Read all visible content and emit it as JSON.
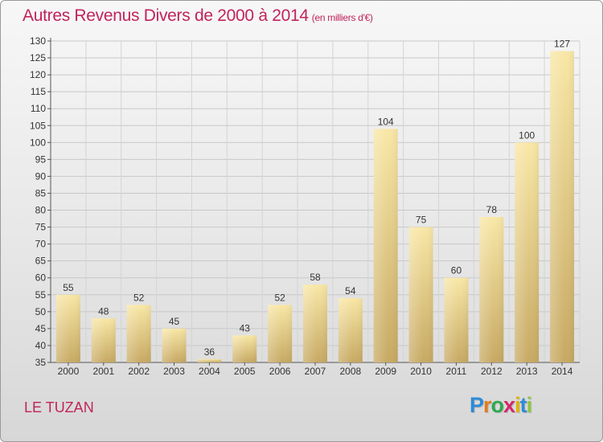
{
  "title": "Autres Revenus Divers de 2000 à 2014",
  "unit_note": "(en milliers d'€)",
  "location": "LE TUZAN",
  "logo": {
    "text": "Proxiti",
    "letters": [
      "P",
      "r",
      "o",
      "x",
      "i",
      "t",
      "i"
    ],
    "colors": [
      "#2e8bd6",
      "#e07c1a",
      "#2fa84f",
      "#d4286a",
      "#e0b400",
      "#2e8bd6",
      "#8cc63f"
    ]
  },
  "colors": {
    "accent": "#c0245c",
    "bar_light": "#f7e3a0",
    "bar_dark": "#c8ab64"
  },
  "chart_data": {
    "type": "bar",
    "categories": [
      "2000",
      "2001",
      "2002",
      "2003",
      "2004",
      "2005",
      "2006",
      "2007",
      "2008",
      "2009",
      "2010",
      "2011",
      "2012",
      "2013",
      "2014"
    ],
    "values": [
      55,
      48,
      52,
      45,
      36,
      43,
      52,
      58,
      54,
      104,
      75,
      60,
      78,
      100,
      127
    ],
    "title": "Autres Revenus Divers de 2000 à 2014",
    "subtitle": "(en milliers d'€)",
    "xlabel": "",
    "ylabel": "",
    "ylim": [
      35,
      130
    ],
    "yticks": [
      35,
      40,
      45,
      50,
      55,
      60,
      65,
      70,
      75,
      80,
      85,
      90,
      95,
      100,
      105,
      110,
      115,
      120,
      125,
      130
    ],
    "grid": true,
    "legend": "none"
  }
}
